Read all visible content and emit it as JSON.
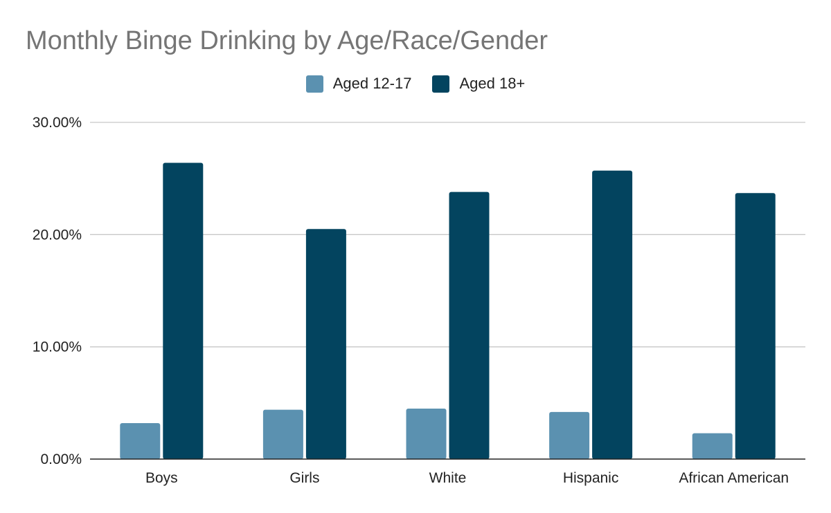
{
  "colors": {
    "series_0": "#5b91b0",
    "series_1": "#03445f",
    "grid": "#c8c8c8",
    "axis": "#222222",
    "title": "#757575"
  },
  "chart_data": {
    "type": "bar",
    "title": "Monthly Binge Drinking by Age/Race/Gender",
    "categories": [
      "Boys",
      "Girls",
      "White",
      "Hispanic",
      "African American"
    ],
    "series": [
      {
        "name": "Aged 12-17",
        "values": [
          3.2,
          4.4,
          4.5,
          4.2,
          2.3
        ]
      },
      {
        "name": "Aged 18+",
        "values": [
          26.4,
          20.5,
          23.8,
          25.7,
          23.7
        ]
      }
    ],
    "ylim": [
      0,
      30
    ],
    "yticks": [
      "0.00%",
      "10.00%",
      "20.00%",
      "30.00%"
    ],
    "grid": true,
    "legend_position": "top-center"
  }
}
